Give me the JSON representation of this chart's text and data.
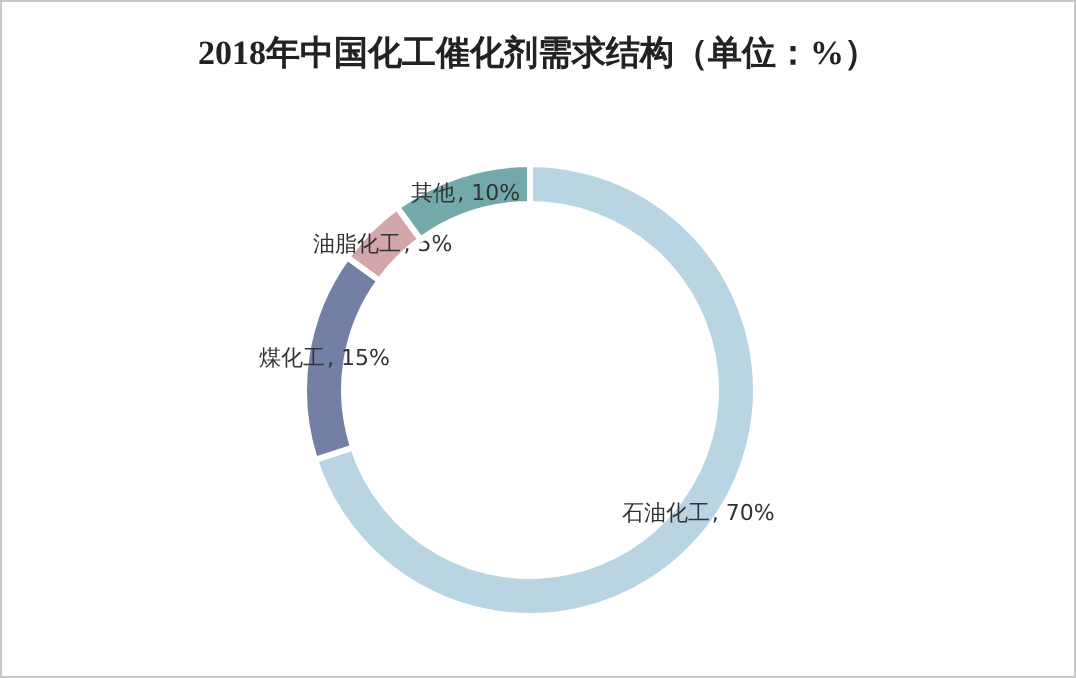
{
  "chart_data": {
    "type": "donut",
    "title": "2018年中国化工催化剂需求结构（单位：%）",
    "categories": [
      "石油化工",
      "煤化工",
      "油脂化工",
      "其他"
    ],
    "values": [
      70,
      15,
      5,
      10
    ],
    "colors": [
      "#b9d4e3",
      "#737fa5",
      "#d2a6aa",
      "#72a9ab"
    ],
    "value_labels": [
      ", 70%",
      ", 15%",
      ", 5%",
      ", 10%"
    ]
  }
}
